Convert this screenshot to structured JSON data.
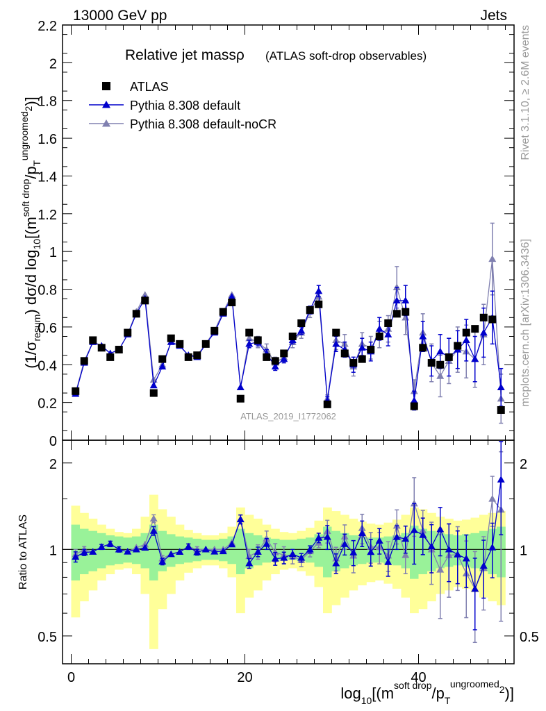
{
  "header": {
    "left": "13000 GeV pp",
    "right": "Jets"
  },
  "side_labels": {
    "rivet": "Rivet 3.1.10, ≥ 2.6M events",
    "mcplots": "mcplots.cern.ch [arXiv:1306.3436]"
  },
  "chart_data": {
    "type": "scatter",
    "title": "Relative jet massρ",
    "title_note": "(ATLAS soft-drop observables)",
    "watermark": "ATLAS_2019_I1772062",
    "xlim": [
      -1,
      51
    ],
    "ylim": [
      0,
      2.2
    ],
    "ratio_ylim": [
      0.4,
      2.4
    ],
    "ratio_ylabel": "Ratio to ATLAS",
    "xticks": [
      0,
      20,
      40
    ],
    "yticks": [
      0,
      0.2,
      0.4,
      0.6,
      0.8,
      1,
      1.2,
      1.4,
      1.6,
      1.8,
      2,
      2.2
    ],
    "ratio_yticks": [
      0.5,
      1,
      2
    ],
    "x": [
      0.5,
      1.5,
      2.5,
      3.5,
      4.5,
      5.5,
      6.5,
      7.5,
      8.5,
      9.5,
      10.5,
      11.5,
      12.5,
      13.5,
      14.5,
      15.5,
      16.5,
      17.5,
      18.5,
      19.5,
      20.5,
      21.5,
      22.5,
      23.5,
      24.5,
      25.5,
      26.5,
      27.5,
      28.5,
      29.5,
      30.5,
      31.5,
      32.5,
      33.5,
      34.5,
      35.5,
      36.5,
      37.5,
      38.5,
      39.5,
      40.5,
      41.5,
      42.5,
      43.5,
      44.5,
      45.5,
      46.5,
      47.5,
      48.5,
      49.5
    ],
    "series": [
      {
        "name": "ATLAS",
        "color": "#000000",
        "marker": "square",
        "values": [
          0.26,
          0.42,
          0.53,
          0.49,
          0.44,
          0.48,
          0.57,
          0.67,
          0.74,
          0.25,
          0.43,
          0.54,
          0.51,
          0.44,
          0.45,
          0.51,
          0.58,
          0.68,
          0.73,
          0.22,
          0.57,
          0.53,
          0.44,
          0.42,
          0.46,
          0.55,
          0.62,
          0.69,
          0.72,
          0.19,
          0.57,
          0.46,
          0.41,
          0.43,
          0.48,
          0.55,
          0.62,
          0.67,
          0.68,
          0.18,
          0.49,
          0.41,
          0.4,
          0.44,
          0.5,
          0.57,
          0.59,
          0.65,
          0.64,
          0.16
        ]
      },
      {
        "name": "Pythia 8.308 default",
        "color": "#0000cc",
        "marker": "triangle",
        "values": [
          0.245,
          0.41,
          0.52,
          0.5,
          0.46,
          0.48,
          0.56,
          0.67,
          0.75,
          0.29,
          0.39,
          0.52,
          0.5,
          0.45,
          0.44,
          0.51,
          0.57,
          0.67,
          0.76,
          0.28,
          0.51,
          0.52,
          0.46,
          0.39,
          0.43,
          0.53,
          0.58,
          0.69,
          0.79,
          0.21,
          0.51,
          0.48,
          0.4,
          0.49,
          0.47,
          0.59,
          0.56,
          0.74,
          0.74,
          0.21,
          0.55,
          0.42,
          0.47,
          0.44,
          0.48,
          0.53,
          0.43,
          0.57,
          0.65,
          0.28
        ]
      },
      {
        "name": "Pythia 8.308 default-noCR",
        "color": "#8080b0",
        "marker": "triangle",
        "values": [
          0.25,
          0.42,
          0.52,
          0.5,
          0.46,
          0.48,
          0.56,
          0.68,
          0.77,
          0.32,
          0.4,
          0.52,
          0.5,
          0.45,
          0.45,
          0.51,
          0.58,
          0.68,
          0.77,
          0.28,
          0.54,
          0.52,
          0.48,
          0.41,
          0.44,
          0.52,
          0.57,
          0.68,
          0.76,
          0.22,
          0.53,
          0.51,
          0.39,
          0.51,
          0.49,
          0.56,
          0.59,
          0.81,
          0.65,
          0.26,
          0.57,
          0.41,
          0.34,
          0.42,
          0.48,
          0.47,
          0.43,
          0.56,
          0.96,
          0.22
        ]
      }
    ],
    "ratio_band_inner": [
      0.22,
      0.18,
      0.16,
      0.14,
      0.12,
      0.11,
      0.1,
      0.11,
      0.14,
      0.22,
      0.16,
      0.13,
      0.11,
      0.1,
      0.09,
      0.08,
      0.08,
      0.09,
      0.11,
      0.18,
      0.14,
      0.12,
      0.1,
      0.09,
      0.08,
      0.08,
      0.09,
      0.1,
      0.13,
      0.2,
      0.16,
      0.14,
      0.12,
      0.11,
      0.1,
      0.1,
      0.11,
      0.12,
      0.14,
      0.21,
      0.18,
      0.16,
      0.14,
      0.13,
      0.12,
      0.13,
      0.14,
      0.16,
      0.18,
      0.2
    ],
    "ratio_band_outer": [
      0.42,
      0.34,
      0.28,
      0.22,
      0.18,
      0.15,
      0.14,
      0.18,
      0.3,
      0.55,
      0.38,
      0.3,
      0.22,
      0.17,
      0.14,
      0.12,
      0.12,
      0.14,
      0.2,
      0.4,
      0.32,
      0.28,
      0.22,
      0.18,
      0.15,
      0.14,
      0.16,
      0.19,
      0.26,
      0.4,
      0.36,
      0.32,
      0.28,
      0.25,
      0.23,
      0.22,
      0.24,
      0.27,
      0.32,
      0.4,
      0.38,
      0.34,
      0.3,
      0.28,
      0.26,
      0.27,
      0.29,
      0.32,
      0.34,
      0.36
    ],
    "mc_errors_default": [
      0.01,
      0.01,
      0.01,
      0.01,
      0.01,
      0.01,
      0.01,
      0.01,
      0.01,
      0.01,
      0.01,
      0.01,
      0.01,
      0.01,
      0.01,
      0.01,
      0.01,
      0.01,
      0.01,
      0.01,
      0.02,
      0.02,
      0.02,
      0.02,
      0.02,
      0.02,
      0.02,
      0.02,
      0.03,
      0.02,
      0.04,
      0.04,
      0.04,
      0.05,
      0.05,
      0.06,
      0.06,
      0.07,
      0.08,
      0.05,
      0.08,
      0.08,
      0.09,
      0.1,
      0.1,
      0.11,
      0.12,
      0.13,
      0.14,
      0.1
    ],
    "mc_errors_nocr": [
      0.01,
      0.01,
      0.01,
      0.01,
      0.01,
      0.01,
      0.01,
      0.01,
      0.01,
      0.01,
      0.01,
      0.01,
      0.01,
      0.01,
      0.01,
      0.01,
      0.01,
      0.01,
      0.01,
      0.01,
      0.03,
      0.03,
      0.03,
      0.03,
      0.03,
      0.03,
      0.03,
      0.03,
      0.03,
      0.02,
      0.05,
      0.05,
      0.05,
      0.06,
      0.06,
      0.07,
      0.07,
      0.11,
      0.09,
      0.06,
      0.1,
      0.1,
      0.11,
      0.12,
      0.12,
      0.14,
      0.15,
      0.16,
      0.19,
      0.13
    ]
  }
}
